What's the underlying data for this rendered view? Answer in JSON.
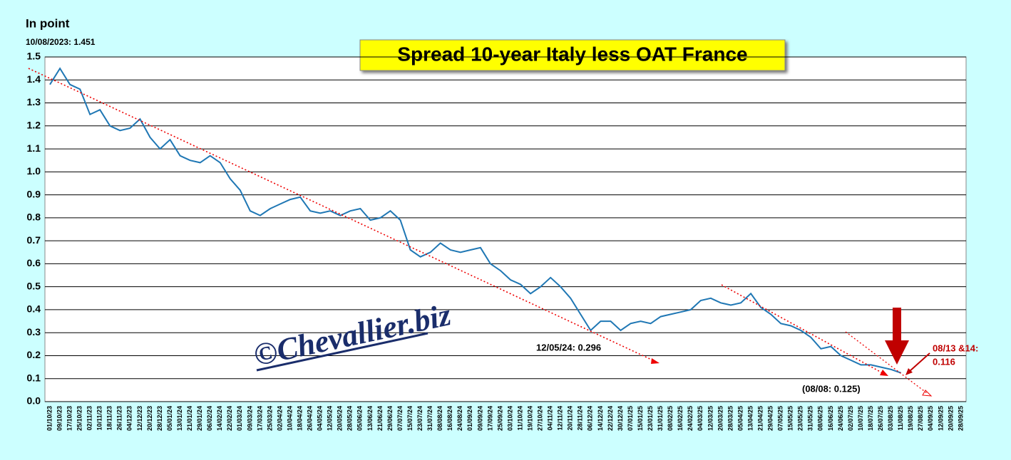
{
  "chart_data": {
    "type": "line",
    "title": "Spread 10-year Italy less OAT France",
    "y_axis_label": "In point",
    "watermark": "©Chevallier.biz",
    "annotations": [
      "10/08/2023: 1.451",
      "12/05/24: 0.296",
      "(08/08: 0.125)",
      "08/13 &14:",
      "0.116"
    ],
    "categories": [
      "01/10/23",
      "09/10/23",
      "17/10/23",
      "25/10/23",
      "02/11/23",
      "10/11/23",
      "18/11/23",
      "26/11/23",
      "04/12/23",
      "12/12/23",
      "20/12/23",
      "28/12/23",
      "05/01/24",
      "13/01/24",
      "21/01/24",
      "29/01/24",
      "06/02/24",
      "14/02/24",
      "22/02/24",
      "01/03/24",
      "09/03/24",
      "17/03/24",
      "25/03/24",
      "02/04/24",
      "10/04/24",
      "18/04/24",
      "26/04/24",
      "04/05/24",
      "12/05/24",
      "20/05/24",
      "28/05/24",
      "05/06/24",
      "13/06/24",
      "21/06/24",
      "29/06/24",
      "07/07/24",
      "15/07/24",
      "23/07/24",
      "31/07/24",
      "08/08/24",
      "16/08/24",
      "24/08/24",
      "01/09/24",
      "09/09/24",
      "17/09/24",
      "25/09/24",
      "03/10/24",
      "11/10/24",
      "19/10/24",
      "27/10/24",
      "04/11/24",
      "12/11/24",
      "20/11/24",
      "28/11/24",
      "06/12/24",
      "14/12/24",
      "22/12/24",
      "30/12/24",
      "07/01/25",
      "15/01/25",
      "23/01/25",
      "31/01/25",
      "08/02/25",
      "16/02/25",
      "24/02/25",
      "04/03/25",
      "12/03/25",
      "20/03/25",
      "28/03/25",
      "05/04/25",
      "13/04/25",
      "21/04/25",
      "29/04/25",
      "07/05/25",
      "15/05/25",
      "23/05/25",
      "31/05/25",
      "08/06/25",
      "16/06/25",
      "24/06/25",
      "02/07/25",
      "10/07/25",
      "18/07/25",
      "26/07/25",
      "03/08/25",
      "11/08/25",
      "19/08/25",
      "27/08/25",
      "04/09/25",
      "12/09/25",
      "20/09/25",
      "28/09/25"
    ],
    "series": [
      {
        "name": "Spread",
        "color": "#1f77b4",
        "values": [
          1.38,
          1.45,
          1.38,
          1.36,
          1.25,
          1.27,
          1.2,
          1.18,
          1.19,
          1.23,
          1.15,
          1.1,
          1.14,
          1.07,
          1.05,
          1.04,
          1.07,
          1.04,
          0.97,
          0.92,
          0.83,
          0.81,
          0.84,
          0.86,
          0.88,
          0.89,
          0.83,
          0.82,
          0.83,
          0.81,
          0.83,
          0.84,
          0.79,
          0.8,
          0.83,
          0.79,
          0.66,
          0.63,
          0.65,
          0.69,
          0.66,
          0.65,
          0.66,
          0.67,
          0.6,
          0.57,
          0.53,
          0.51,
          0.47,
          0.5,
          0.54,
          0.5,
          0.45,
          0.38,
          0.31,
          0.35,
          0.35,
          0.31,
          0.34,
          0.35,
          0.34,
          0.37,
          0.38,
          0.39,
          0.4,
          0.44,
          0.45,
          0.43,
          0.42,
          0.43,
          0.47,
          0.41,
          0.38,
          0.34,
          0.33,
          0.31,
          0.28,
          0.23,
          0.24,
          0.2,
          0.18,
          0.16,
          0.16,
          0.15,
          0.14,
          0.125,
          null,
          null,
          null,
          null,
          null,
          null
        ]
      }
    ],
    "ylim": [
      0,
      1.5
    ],
    "yticks": [
      {
        "value": 0,
        "label": "0.0"
      },
      0.1,
      0.2,
      0.3,
      0.4,
      0.5,
      0.6,
      0.7,
      0.8,
      0.9,
      {
        "value": 1,
        "label": "1.0"
      },
      1.1,
      1.2,
      1.3,
      1.4,
      1.5
    ],
    "grid": true
  }
}
